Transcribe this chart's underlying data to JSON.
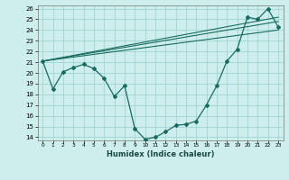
{
  "xlabel": "Humidex (Indice chaleur)",
  "bg_color": "#ceeeed",
  "grid_color": "#9ed4d2",
  "line_color": "#1a6b60",
  "xlim": [
    -0.5,
    23.5
  ],
  "ylim": [
    13.7,
    26.3
  ],
  "xticks": [
    0,
    1,
    2,
    3,
    4,
    5,
    6,
    7,
    8,
    9,
    10,
    11,
    12,
    13,
    14,
    15,
    16,
    17,
    18,
    19,
    20,
    21,
    22,
    23
  ],
  "yticks": [
    14,
    15,
    16,
    17,
    18,
    19,
    20,
    21,
    22,
    23,
    24,
    25,
    26
  ],
  "line1_x": [
    0,
    1,
    2,
    3,
    4,
    5,
    6,
    7,
    8,
    9,
    10,
    11,
    12,
    13,
    14,
    15,
    16,
    17,
    18,
    19,
    20,
    21,
    22,
    23
  ],
  "line1_y": [
    21.1,
    18.5,
    20.1,
    20.5,
    20.8,
    20.4,
    19.5,
    17.8,
    18.8,
    14.8,
    13.8,
    14.0,
    14.5,
    15.1,
    15.2,
    15.5,
    17.0,
    18.8,
    21.1,
    22.2,
    25.2,
    25.0,
    26.0,
    24.3
  ],
  "line2_x": [
    0,
    23
  ],
  "line2_y": [
    21.1,
    24.0
  ],
  "line3_x": [
    0,
    23
  ],
  "line3_y": [
    21.1,
    24.8
  ],
  "line4_x": [
    0,
    23
  ],
  "line4_y": [
    21.1,
    25.2
  ]
}
